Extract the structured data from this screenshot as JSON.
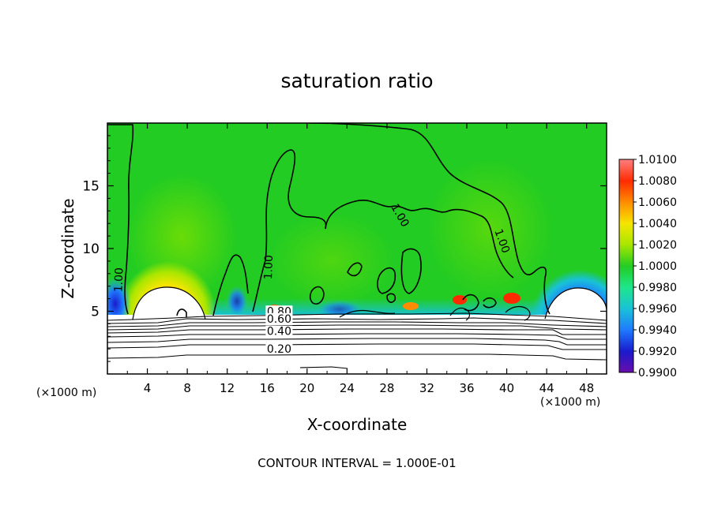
{
  "chart_data": {
    "type": "heatmap",
    "title": "saturation ratio",
    "xlabel": "X-coordinate",
    "ylabel": "Z-coordinate",
    "x_unit": "(×1000 m)",
    "y_unit": "(×1000 m)",
    "xlim": [
      0,
      50
    ],
    "ylim": [
      0,
      20
    ],
    "x_ticks": [
      4,
      8,
      12,
      16,
      20,
      24,
      28,
      32,
      36,
      40,
      44,
      48
    ],
    "y_ticks": [
      5,
      10,
      15
    ],
    "colorbar": {
      "levels": [
        "0.9900",
        "0.9920",
        "0.9940",
        "0.9960",
        "0.9980",
        "1.0000",
        "1.0020",
        "1.0040",
        "1.0060",
        "1.0080",
        "1.0100"
      ],
      "colors": [
        "#6a0dad",
        "#1a1acc",
        "#1e7aff",
        "#19c2d6",
        "#1ee68c",
        "#22cc22",
        "#a8e600",
        "#f5e600",
        "#ff8c00",
        "#ff2a00",
        "#ff7f7f"
      ]
    },
    "contour_labels": [
      {
        "text": "1.00",
        "x": 1.5,
        "z": 7.5
      },
      {
        "text": "1.00",
        "x": 16.5,
        "z": 8.5
      },
      {
        "text": "1.00",
        "x": 29,
        "z": 12.5
      },
      {
        "text": "1.00",
        "x": 39.2,
        "z": 10.5
      },
      {
        "text": "0.80",
        "x": 17.2,
        "z": 4.7
      },
      {
        "text": "0.60",
        "x": 17.2,
        "z": 4.1
      },
      {
        "text": "0.40",
        "x": 17.2,
        "z": 3.1
      },
      {
        "text": "0.20",
        "x": 17.2,
        "z": 1.7
      }
    ],
    "features": {
      "dry_cells_x": [
        6,
        47
      ],
      "surface_height_z": 4.5,
      "background_value": "1.0000"
    },
    "footer": "CONTOUR INTERVAL = 1.000E-01"
  },
  "colors": {
    "background": "#ffffff",
    "field": "#22cc22",
    "axis": "#000000"
  }
}
